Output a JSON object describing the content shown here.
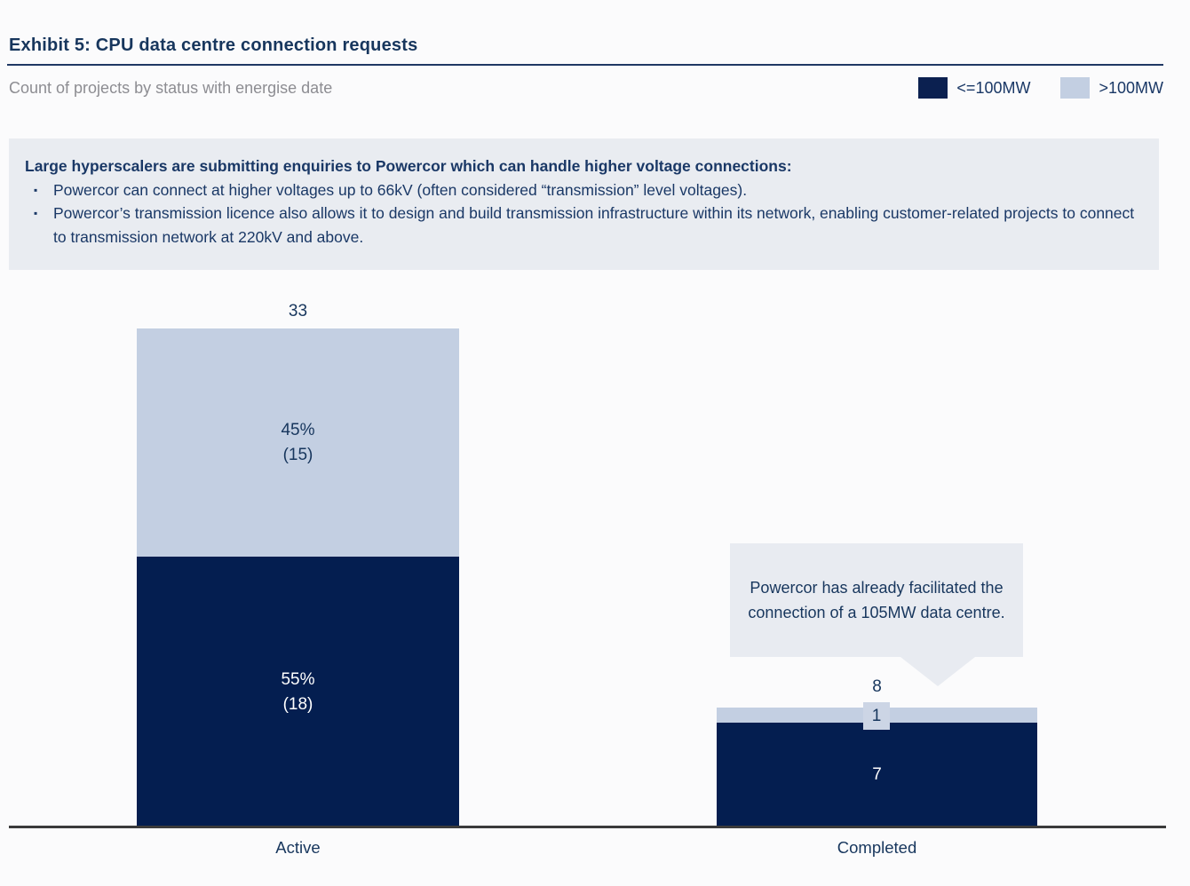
{
  "header": {
    "title": "Exhibit 5: CPU data centre connection requests",
    "subtitle": "Count of projects by status with energise date"
  },
  "legend": {
    "items": [
      {
        "label": "<=100MW",
        "color": "#0b2050"
      },
      {
        "label": ">100MW",
        "color": "#c3cfe2"
      }
    ]
  },
  "info_box": {
    "bullet_marker": "▪",
    "heading": "Large hyperscalers are submitting enquiries to Powercor which can handle higher voltage connections:",
    "bullets": [
      "Powercor can connect at higher voltages up to 66kV (often considered “transmission” level voltages).",
      "Powercor’s transmission licence also allows it to design and build transmission infrastructure within its network, enabling customer-related projects to connect to transmission network at 220kV and above."
    ]
  },
  "callout": {
    "text": "Powercor has already facilitated the connection of a 105MW data centre."
  },
  "chart_data": {
    "type": "bar",
    "stacked": true,
    "title": "Exhibit 5: CPU data centre connection requests",
    "subtitle": "Count of projects by status with energise date",
    "categories": [
      "Active",
      "Completed"
    ],
    "series": [
      {
        "name": "<=100MW",
        "color": "#041e50",
        "values": [
          18,
          7
        ]
      },
      {
        "name": ">100MW",
        "color": "#c3cfe2",
        "values": [
          15,
          1
        ]
      }
    ],
    "totals": [
      33,
      8
    ],
    "legend_position": "top-right",
    "grid": false,
    "axis_color": "#3b3b3b",
    "bars": [
      {
        "category": "Active",
        "total": "33",
        "upper_pct": "45%",
        "upper_count": "(15)",
        "lower_pct": "55%",
        "lower_count": "(18)"
      },
      {
        "category": "Completed",
        "total": "8",
        "upper_label": "1",
        "lower_label": "7"
      }
    ]
  }
}
